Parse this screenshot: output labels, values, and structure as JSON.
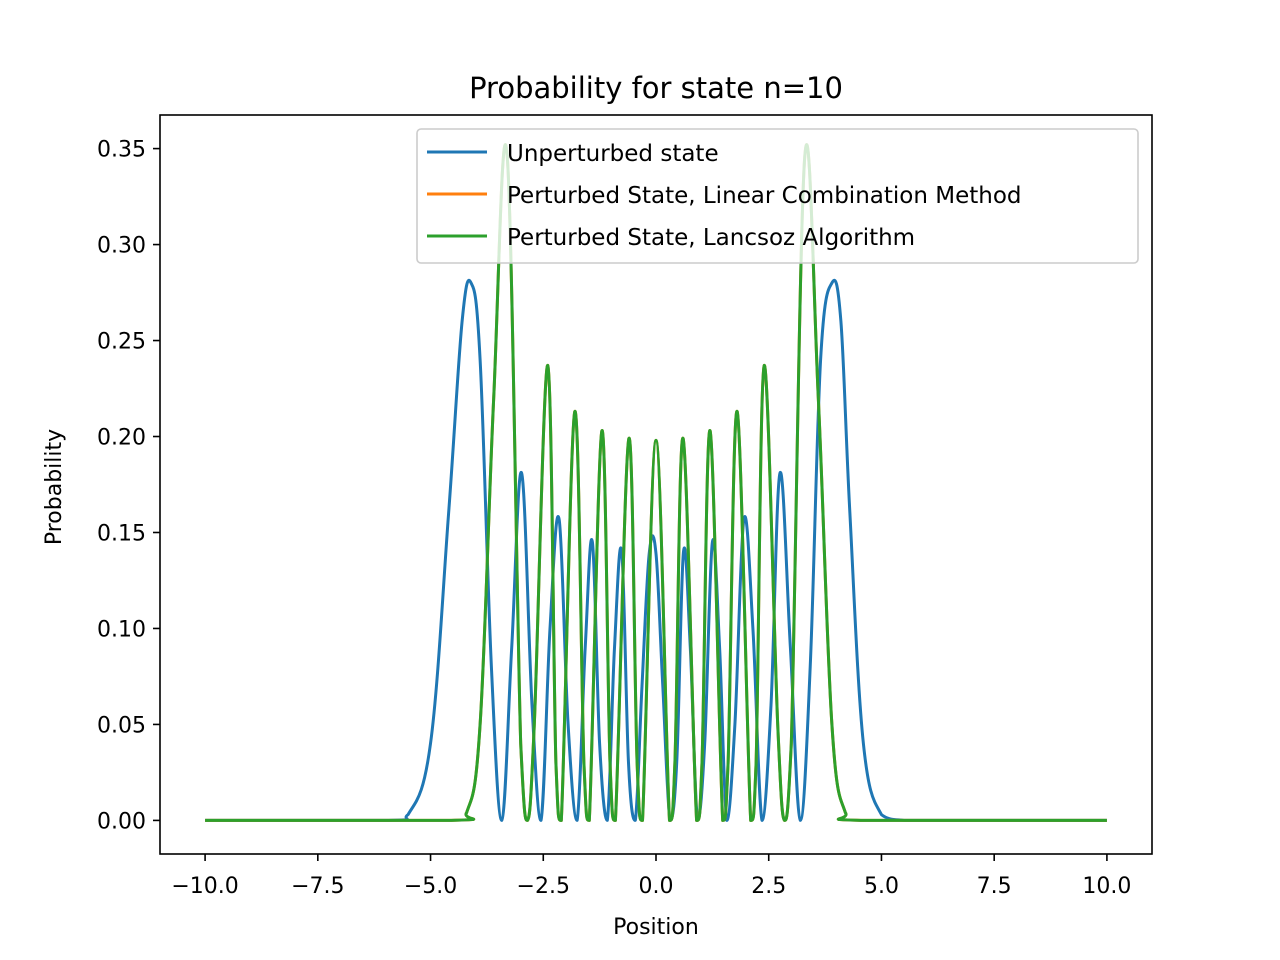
{
  "chart_data": {
    "type": "line",
    "title": "Probability for state n=10",
    "xlabel": "Position",
    "ylabel": "Probability",
    "xlim": [
      -11.0,
      11.0
    ],
    "ylim": [
      -0.0175,
      0.3675
    ],
    "xticks": [
      -10.0,
      -7.5,
      -5.0,
      -2.5,
      0.0,
      2.5,
      5.0,
      7.5,
      10.0
    ],
    "xtick_labels": [
      "−10.0",
      "−7.5",
      "−5.0",
      "−2.5",
      "0.0",
      "2.5",
      "5.0",
      "7.5",
      "10.0"
    ],
    "yticks": [
      0.0,
      0.05,
      0.1,
      0.15,
      0.2,
      0.25,
      0.3,
      0.35
    ],
    "ytick_labels": [
      "0.00",
      "0.05",
      "0.10",
      "0.15",
      "0.20",
      "0.25",
      "0.30",
      "0.35"
    ],
    "grid": false,
    "legend_position": "top-right",
    "series": [
      {
        "name": "Unperturbed state",
        "color": "#1f77b4",
        "x": [
          -10.0,
          -6.0,
          -5.5,
          -5.0,
          -4.6,
          -4.3,
          -4.1,
          -3.9,
          -3.65,
          -3.42,
          -3.2,
          -2.98,
          -2.75,
          -2.55,
          -2.35,
          -2.15,
          -1.95,
          -1.75,
          -1.57,
          -1.41,
          -1.25,
          -1.08,
          -0.92,
          -0.76,
          -0.61,
          -0.46,
          -0.31,
          -0.15,
          0.0,
          0.15,
          0.31,
          0.46,
          0.61,
          0.76,
          0.92,
          1.08,
          1.25,
          1.41,
          1.57,
          1.75,
          1.95,
          2.15,
          2.35,
          2.55,
          2.75,
          2.98,
          3.2,
          3.42,
          3.65,
          3.9,
          4.1,
          4.3,
          4.6,
          5.0,
          5.5,
          6.0,
          10.0
        ],
        "y": [
          0.0,
          0.0,
          0.003,
          0.04,
          0.16,
          0.26,
          0.28,
          0.24,
          0.08,
          0.0,
          0.09,
          0.181,
          0.06,
          0.0,
          0.1,
          0.157,
          0.05,
          0.0,
          0.09,
          0.145,
          0.04,
          0.0,
          0.09,
          0.14,
          0.03,
          0.0,
          0.07,
          0.139,
          0.139,
          0.07,
          0.0,
          0.03,
          0.14,
          0.09,
          0.0,
          0.04,
          0.145,
          0.09,
          0.0,
          0.05,
          0.157,
          0.1,
          0.0,
          0.06,
          0.181,
          0.09,
          0.0,
          0.08,
          0.24,
          0.28,
          0.26,
          0.16,
          0.04,
          0.003,
          0.0,
          0.0,
          0.0
        ]
      },
      {
        "name": "Perturbed State, Linear Combination Method",
        "color": "#ff7f0e",
        "x": [
          -10.0,
          -4.6,
          -4.2,
          -3.9,
          -3.6,
          -3.3,
          -3.0,
          -2.85,
          -2.7,
          -2.4,
          -2.22,
          -2.1,
          -1.8,
          -1.6,
          -1.48,
          -1.2,
          -1.02,
          -0.9,
          -0.6,
          -0.42,
          -0.3,
          0.0,
          0.3,
          0.42,
          0.6,
          0.9,
          1.02,
          1.2,
          1.48,
          1.6,
          1.8,
          2.1,
          2.22,
          2.4,
          2.7,
          2.85,
          3.0,
          3.3,
          3.6,
          3.9,
          4.2,
          4.6,
          10.0
        ],
        "y": [
          0.0,
          0.0,
          0.004,
          0.05,
          0.22,
          0.346,
          0.04,
          0.0,
          0.05,
          0.237,
          0.03,
          0.0,
          0.213,
          0.03,
          0.0,
          0.203,
          0.03,
          0.0,
          0.199,
          0.03,
          0.0,
          0.198,
          0.0,
          0.03,
          0.199,
          0.0,
          0.03,
          0.203,
          0.0,
          0.03,
          0.213,
          0.0,
          0.03,
          0.237,
          0.05,
          0.0,
          0.04,
          0.346,
          0.22,
          0.05,
          0.004,
          0.0,
          0.0
        ]
      },
      {
        "name": "Perturbed State, Lancsoz Algorithm",
        "color": "#2ca02c",
        "x": [
          -10.0,
          -4.6,
          -4.2,
          -3.9,
          -3.6,
          -3.3,
          -3.0,
          -2.85,
          -2.7,
          -2.4,
          -2.22,
          -2.1,
          -1.8,
          -1.6,
          -1.48,
          -1.2,
          -1.02,
          -0.9,
          -0.6,
          -0.42,
          -0.3,
          0.0,
          0.3,
          0.42,
          0.6,
          0.9,
          1.02,
          1.2,
          1.48,
          1.6,
          1.8,
          2.1,
          2.22,
          2.4,
          2.7,
          2.85,
          3.0,
          3.3,
          3.6,
          3.9,
          4.2,
          4.6,
          10.0
        ],
        "y": [
          0.0,
          0.0,
          0.004,
          0.05,
          0.22,
          0.346,
          0.04,
          0.0,
          0.05,
          0.237,
          0.03,
          0.0,
          0.213,
          0.03,
          0.0,
          0.203,
          0.03,
          0.0,
          0.199,
          0.03,
          0.0,
          0.198,
          0.0,
          0.03,
          0.199,
          0.0,
          0.03,
          0.203,
          0.0,
          0.03,
          0.213,
          0.0,
          0.03,
          0.237,
          0.05,
          0.0,
          0.04,
          0.346,
          0.22,
          0.05,
          0.004,
          0.0,
          0.0
        ]
      }
    ]
  }
}
